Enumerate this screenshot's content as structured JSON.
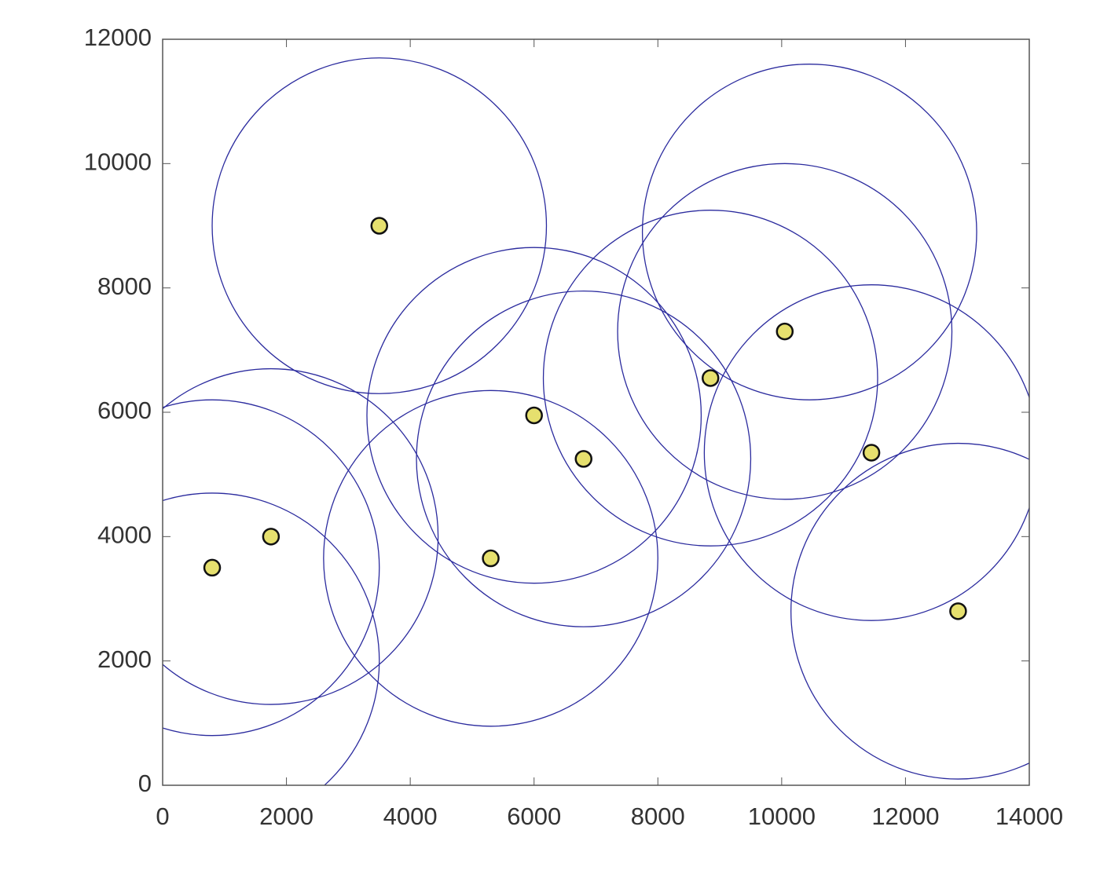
{
  "chart_data": {
    "type": "scatter",
    "xlim": [
      0,
      14000
    ],
    "ylim": [
      0,
      12000
    ],
    "xticks": [
      0,
      2000,
      4000,
      6000,
      8000,
      10000,
      12000,
      14000
    ],
    "yticks": [
      0,
      2000,
      4000,
      6000,
      8000,
      10000,
      12000
    ],
    "grid": false,
    "circles": {
      "color": "#2b2b9e",
      "x": [
        3500,
        800,
        1750,
        5300,
        6000,
        6800,
        8850,
        10050,
        11450,
        12850,
        10450,
        800
      ],
      "y": [
        9000,
        3500,
        4000,
        3650,
        5950,
        5250,
        6550,
        7300,
        5350,
        2800,
        8900,
        2000
      ],
      "r": [
        2700,
        2700,
        2700,
        2700,
        2700,
        2700,
        2700,
        2700,
        2700,
        2700,
        2700,
        2700
      ]
    },
    "points": {
      "color": "#e6e06e",
      "x": [
        3500,
        800,
        1750,
        5300,
        6000,
        6800,
        8850,
        10050,
        11450,
        12850
      ],
      "y": [
        9000,
        3500,
        4000,
        3650,
        5950,
        5250,
        6550,
        7300,
        5350,
        2800
      ]
    }
  }
}
